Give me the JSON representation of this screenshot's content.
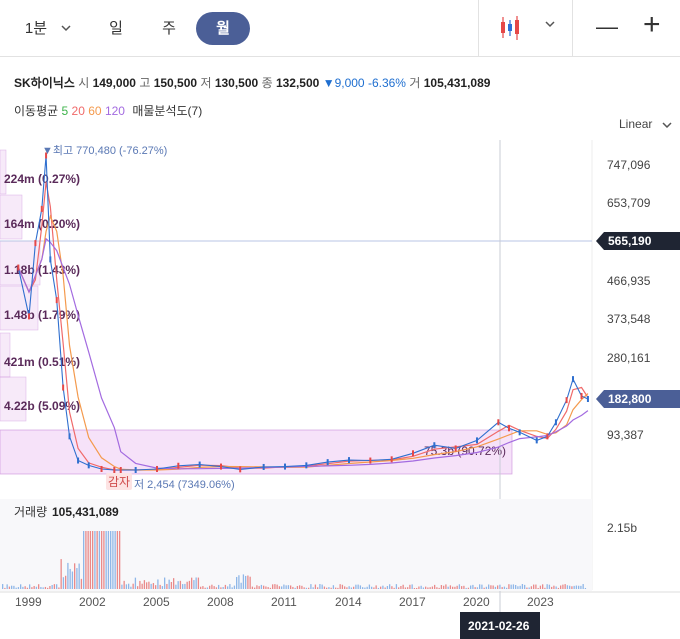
{
  "toolbar": {
    "timeframes": [
      "1분",
      "일",
      "주",
      "월"
    ],
    "active": "월",
    "minimize": "—",
    "add": "+"
  },
  "stock": {
    "name": "SK하이닉스",
    "open_label": "시",
    "open": "149,000",
    "high_label": "고",
    "high": "150,500",
    "low_label": "저",
    "low": "130,500",
    "close_label": "종",
    "close": "132,500",
    "change_arrow": "▼",
    "change": "9,000",
    "change_pct": "-6.36%",
    "volume_label": "거",
    "volume": "105,431,089"
  },
  "ma": {
    "label": "이동평균",
    "periods": [
      "5",
      "20",
      "60",
      "120"
    ],
    "colors": [
      "#3cb34a",
      "#f06a6a",
      "#f49a4d",
      "#a36be0"
    ],
    "profile_label": "매물분석도(7)"
  },
  "scale_mode": "Linear",
  "chart_data": {
    "type": "line",
    "price_axis_ticks": [
      "747,096",
      "653,709",
      "565,190",
      "466,935",
      "373,548",
      "280,161",
      "182,800",
      "93,387"
    ],
    "current_line_label": "565,190",
    "last_price_label": "182,800",
    "x_ticks": [
      "1999",
      "2002",
      "2005",
      "2008",
      "2011",
      "2014",
      "2017",
      "2020",
      "2023"
    ],
    "max_label": "▼최고 770,480 (-76.27%)",
    "min_label": "저 2,454 (7349.06%)",
    "annotation_badge": "감자",
    "volume_profile": [
      {
        "label": "224m (0.27%)"
      },
      {
        "label": "164m (0.20%)"
      },
      {
        "label": "1.18b (1.43%)"
      },
      {
        "label": "1.48b (1.79%)"
      },
      {
        "label": "421m (0.51%)"
      },
      {
        "label": "4.22b (5.09%)"
      },
      {
        "label": "75.3b (90.72%)"
      }
    ],
    "volume_label": "거래량",
    "volume_value": "105,431,089",
    "volume_axis_tick": "2.15b",
    "crosshair_date": "2021-02-26",
    "price_series": [
      {
        "x": 1998.5,
        "y": 500000
      },
      {
        "x": 1999.0,
        "y": 380000
      },
      {
        "x": 1999.3,
        "y": 560000
      },
      {
        "x": 1999.6,
        "y": 640000
      },
      {
        "x": 1999.8,
        "y": 770480
      },
      {
        "x": 2000.0,
        "y": 520000
      },
      {
        "x": 2000.3,
        "y": 420000
      },
      {
        "x": 2000.6,
        "y": 210000
      },
      {
        "x": 2000.9,
        "y": 90000
      },
      {
        "x": 2001.3,
        "y": 30000
      },
      {
        "x": 2001.8,
        "y": 18000
      },
      {
        "x": 2002.4,
        "y": 9000
      },
      {
        "x": 2003.0,
        "y": 4000
      },
      {
        "x": 2003.3,
        "y": 2454
      },
      {
        "x": 2004.0,
        "y": 6000
      },
      {
        "x": 2005.0,
        "y": 9000
      },
      {
        "x": 2006.0,
        "y": 17000
      },
      {
        "x": 2007.0,
        "y": 20000
      },
      {
        "x": 2008.0,
        "y": 15000
      },
      {
        "x": 2008.9,
        "y": 8000
      },
      {
        "x": 2010.0,
        "y": 14000
      },
      {
        "x": 2011.0,
        "y": 15000
      },
      {
        "x": 2012.0,
        "y": 18000
      },
      {
        "x": 2013.0,
        "y": 26000
      },
      {
        "x": 2014.0,
        "y": 31000
      },
      {
        "x": 2015.0,
        "y": 30000
      },
      {
        "x": 2016.0,
        "y": 33000
      },
      {
        "x": 2017.0,
        "y": 48000
      },
      {
        "x": 2018.0,
        "y": 68000
      },
      {
        "x": 2019.0,
        "y": 60000
      },
      {
        "x": 2020.0,
        "y": 80000
      },
      {
        "x": 2021.0,
        "y": 125000
      },
      {
        "x": 2021.5,
        "y": 110000
      },
      {
        "x": 2022.0,
        "y": 100000
      },
      {
        "x": 2022.8,
        "y": 80000
      },
      {
        "x": 2023.3,
        "y": 90000
      },
      {
        "x": 2023.7,
        "y": 125000
      },
      {
        "x": 2024.2,
        "y": 180000
      },
      {
        "x": 2024.5,
        "y": 230000
      },
      {
        "x": 2024.9,
        "y": 190000
      },
      {
        "x": 2025.2,
        "y": 182800
      }
    ]
  }
}
